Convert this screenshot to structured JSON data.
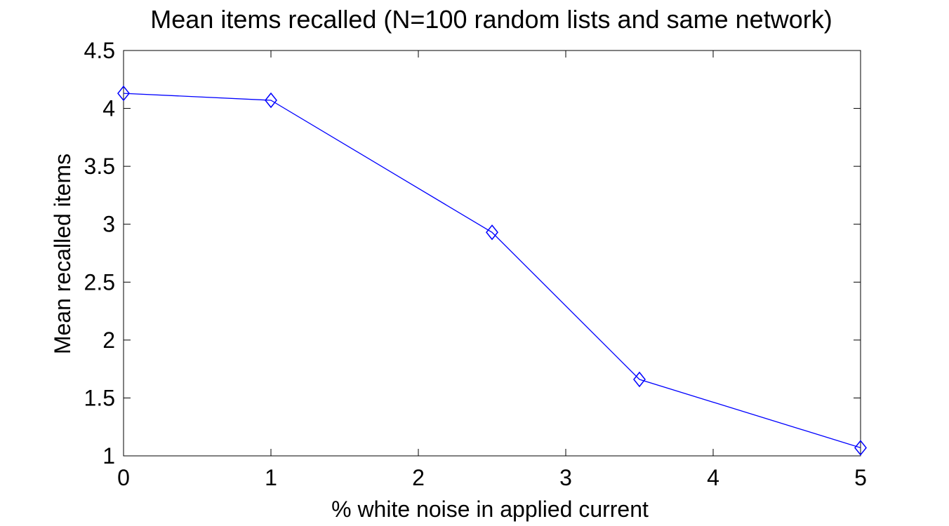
{
  "chart_data": {
    "type": "line",
    "title": "Mean items recalled (N=100 random lists and same network)",
    "xlabel": "% white noise in applied current",
    "ylabel": "Mean recalled items",
    "xlim": [
      0,
      5
    ],
    "ylim": [
      1,
      4.5
    ],
    "xticks": [
      "0",
      "1",
      "2",
      "3",
      "4",
      "5"
    ],
    "yticks": [
      "1",
      "1.5",
      "2",
      "2.5",
      "3",
      "3.5",
      "4",
      "4.5"
    ],
    "grid": false,
    "legend": "none",
    "series": [
      {
        "color": "#0000ff",
        "marker": "diamond-icon",
        "x": [
          0,
          1,
          2.5,
          3.5,
          5
        ],
        "y": [
          4.13,
          4.07,
          2.93,
          1.66,
          1.07
        ]
      }
    ]
  }
}
